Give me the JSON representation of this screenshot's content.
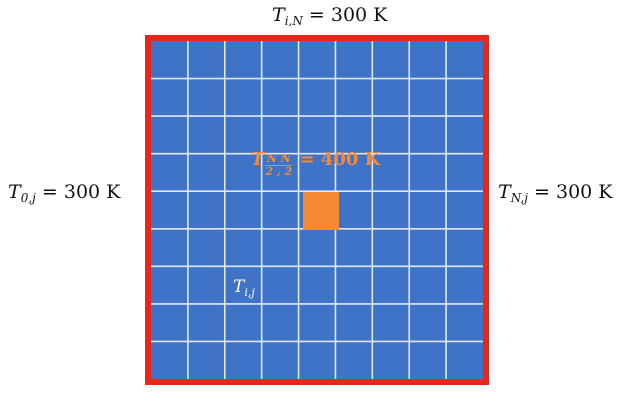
{
  "boundary_labels": {
    "top": {
      "symbol": "T",
      "subscript": "i,N",
      "value": "= 300 K"
    },
    "left": {
      "symbol": "T",
      "subscript": "0,j",
      "value": "= 300 K"
    },
    "right": {
      "symbol": "T",
      "subscript": "N,j",
      "value": "= 300 K"
    }
  },
  "center": {
    "symbol": "T",
    "frac_top": "N  N",
    "frac_bottom": "2 , 2",
    "value": "= 400 K"
  },
  "generic_cell": {
    "symbol": "T",
    "subscript": "i,j"
  },
  "grid": {
    "columns": 9,
    "rows": 9
  },
  "colors": {
    "grid_fill": "#3f73c8",
    "grid_lines": "#dfe8f5",
    "border": "#e8261a",
    "hot_cell": "#f58a34"
  }
}
